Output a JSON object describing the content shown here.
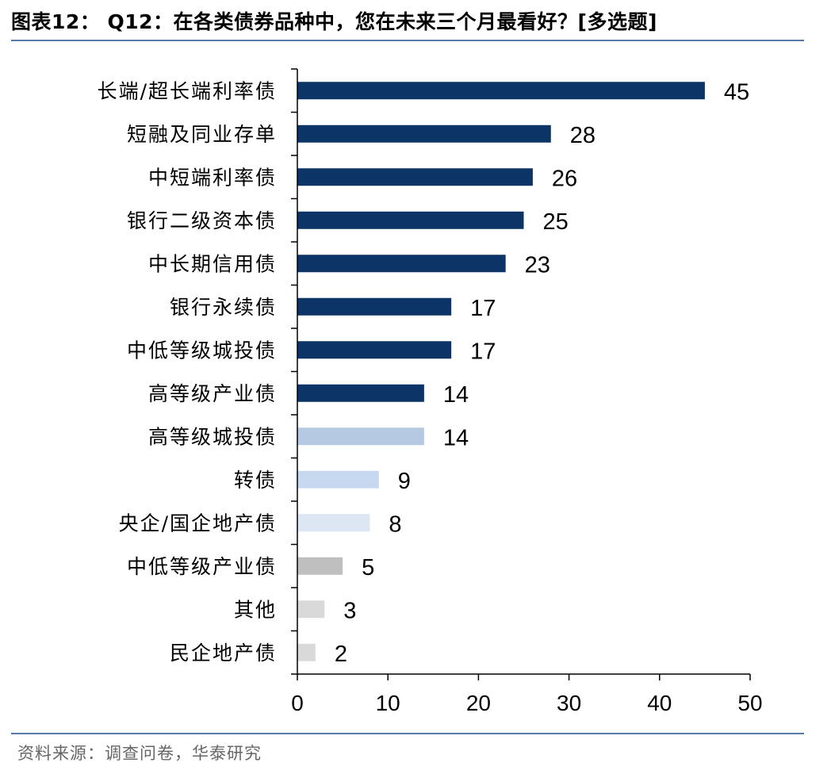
{
  "title": "图表12： Q12：在各类债券品种中，您在未来三个月最看好？[多选题]",
  "source": "资料来源：调查问卷，华泰研究",
  "colors": {
    "dark_navy": "#0c3466",
    "medium_blue": "#b6c9e2",
    "light_blue": "#c6d8f0",
    "pale_blue": "#dde6f3",
    "mid_gray": "#bfbfbf",
    "light_gray": "#d9d9d9",
    "rule_blue": "#5a79a8"
  },
  "chart_data": {
    "type": "bar",
    "orientation": "horizontal",
    "categories": [
      "长端/超长端利率债",
      "短融及同业存单",
      "中短端利率债",
      "银行二级资本债",
      "中长期信用债",
      "银行永续债",
      "中低等级城投债",
      "高等级产业债",
      "高等级城投债",
      "转债",
      "央企/国企地产债",
      "中低等级产业债",
      "其他",
      "民企地产债"
    ],
    "values": [
      45,
      28,
      26,
      25,
      23,
      17,
      17,
      14,
      14,
      9,
      8,
      5,
      3,
      2
    ],
    "bar_colors": [
      "#0c3466",
      "#0c3466",
      "#0c3466",
      "#0c3466",
      "#0c3466",
      "#0c3466",
      "#0c3466",
      "#0c3466",
      "#b6c9e2",
      "#c6d8f0",
      "#dde6f3",
      "#bfbfbf",
      "#d9d9d9",
      "#d9d9d9"
    ],
    "x_ticks": [
      "0",
      "10",
      "20",
      "30",
      "40",
      "50"
    ],
    "xlim": [
      0,
      50
    ],
    "grid": false,
    "legend": "none",
    "data_labels": true
  }
}
